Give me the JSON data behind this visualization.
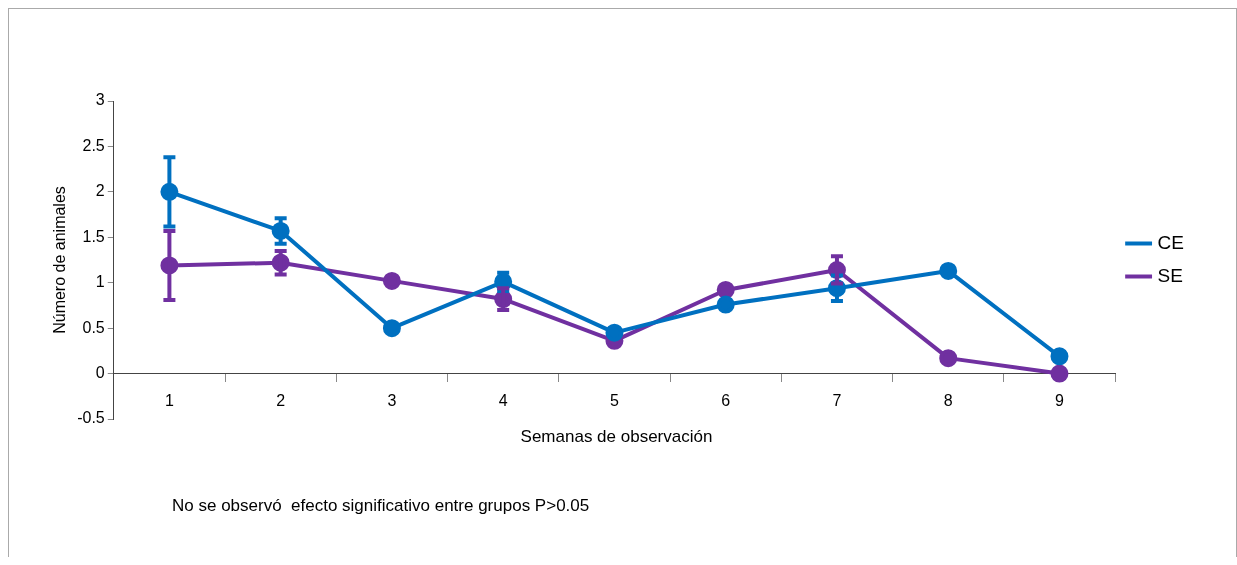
{
  "chart_data": {
    "type": "line",
    "xlabel": "Semanas de observación",
    "ylabel": "Número de animales",
    "categories": [
      "1",
      "2",
      "3",
      "4",
      "5",
      "6",
      "7",
      "8",
      "9"
    ],
    "series": [
      {
        "name": "CE",
        "color": "#0070c0",
        "values": [
          2.0,
          1.57,
          0.5,
          1.01,
          0.45,
          0.76,
          0.94,
          1.13,
          0.19
        ],
        "errors": [
          0.38,
          0.14,
          null,
          0.1,
          null,
          null,
          0.14,
          null,
          null
        ]
      },
      {
        "name": "SE",
        "color": "#7030a0",
        "values": [
          1.19,
          1.22,
          1.02,
          0.82,
          0.36,
          0.92,
          1.14,
          0.17,
          0
        ],
        "errors": [
          0.38,
          0.13,
          null,
          0.12,
          null,
          null,
          0.15,
          null,
          null
        ]
      }
    ],
    "ylim": [
      -0.5,
      3
    ],
    "yticks": [
      -0.5,
      0,
      0.5,
      1,
      1.5,
      2,
      2.5,
      3
    ],
    "grid": false,
    "legend": "right",
    "marker": "circle",
    "line_style": "solid",
    "annotations": [
      "No se observó  efecto significativo entre grupos P>0.05"
    ]
  }
}
